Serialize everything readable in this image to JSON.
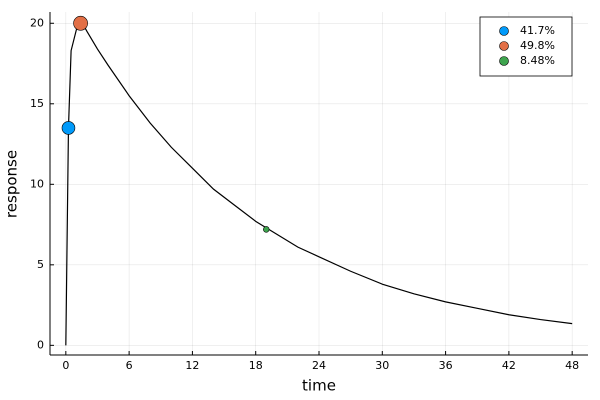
{
  "chart_data": {
    "type": "scatter",
    "x_label": "time",
    "y_label": "response",
    "xlim": [
      -1.5,
      49.5
    ],
    "ylim": [
      -0.6,
      20.7
    ],
    "xticks": [
      0,
      6,
      12,
      18,
      24,
      30,
      36,
      42,
      48
    ],
    "yticks": [
      0,
      5,
      10,
      15,
      20
    ],
    "grid": true,
    "legend": "top-right",
    "line": {
      "color": "#000000",
      "x": [
        0,
        0.25,
        0.5,
        1,
        1.5,
        2,
        3,
        4,
        6,
        8,
        10,
        12,
        14,
        16,
        18,
        20,
        22,
        24,
        27,
        30,
        33,
        36,
        39,
        42,
        45,
        48
      ],
      "values": [
        0,
        13.5,
        18.3,
        19.6,
        20.1,
        19.5,
        18.4,
        17.4,
        15.5,
        13.8,
        12.3,
        11.0,
        9.7,
        8.7,
        7.7,
        6.9,
        6.1,
        5.5,
        4.6,
        3.8,
        3.2,
        2.7,
        2.3,
        1.9,
        1.6,
        1.35
      ]
    },
    "series": [
      {
        "name": "41.7%",
        "color": "#009afa",
        "x": [
          0.25
        ],
        "values": [
          13.5
        ],
        "sizes": [
          41.7
        ]
      },
      {
        "name": "49.8%",
        "color": "#e26f46",
        "x": [
          1.4
        ],
        "values": [
          20
        ],
        "sizes": [
          49.8
        ]
      },
      {
        "name": "8.48%",
        "color": "#3ea44e",
        "x": [
          19
        ],
        "values": [
          7.2
        ],
        "sizes": [
          8.48
        ]
      }
    ]
  }
}
